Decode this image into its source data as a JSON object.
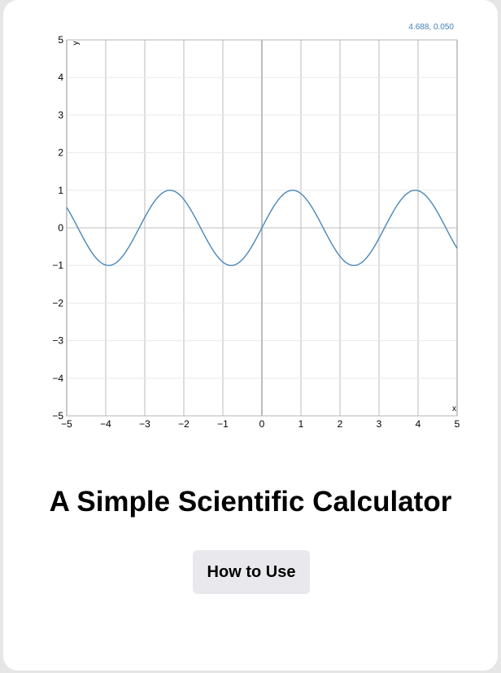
{
  "page": {
    "coordinate_readout": "4.688, 0.050",
    "title": "A Simple Scientific Calculator",
    "how_to_use_label": "How to Use"
  },
  "chart_data": {
    "type": "line",
    "title": "",
    "xlabel": "x",
    "ylabel": "y",
    "xlim": [
      -5,
      5
    ],
    "ylim": [
      -5,
      5
    ],
    "x_ticks": [
      -5,
      -4,
      -3,
      -2,
      -1,
      0,
      1,
      2,
      3,
      4,
      5
    ],
    "y_ticks": [
      -5,
      -4,
      -3,
      -2,
      -1,
      0,
      1,
      2,
      3,
      4,
      5
    ],
    "x_tick_labels": [
      "−5",
      "−4",
      "−3",
      "−2",
      "−1",
      "0",
      "1",
      "2",
      "3",
      "4",
      "5"
    ],
    "y_tick_labels": [
      "−5",
      "−4",
      "−3",
      "−2",
      "−1",
      "0",
      "1",
      "2",
      "3",
      "4",
      "5"
    ],
    "grid": true,
    "line_color": "#4a86b8",
    "grid_color": "#dddddd",
    "series": [
      {
        "x": [
          -5,
          -4.5,
          -4,
          -3.5,
          -3,
          -2.5,
          -2,
          -1.5,
          -1,
          -0.5,
          0,
          0.5,
          1,
          1.5,
          2,
          2.5,
          3,
          3.5,
          4,
          4.5,
          5
        ],
        "y": [
          0.54,
          -0.43,
          -0.99,
          -0.88,
          -0.28,
          0.7,
          0.99,
          0.7,
          -0.28,
          -0.88,
          0.0,
          0.88,
          0.28,
          -0.7,
          -0.99,
          -0.7,
          0.28,
          0.88,
          0.99,
          0.43,
          -0.54
        ]
      }
    ]
  }
}
